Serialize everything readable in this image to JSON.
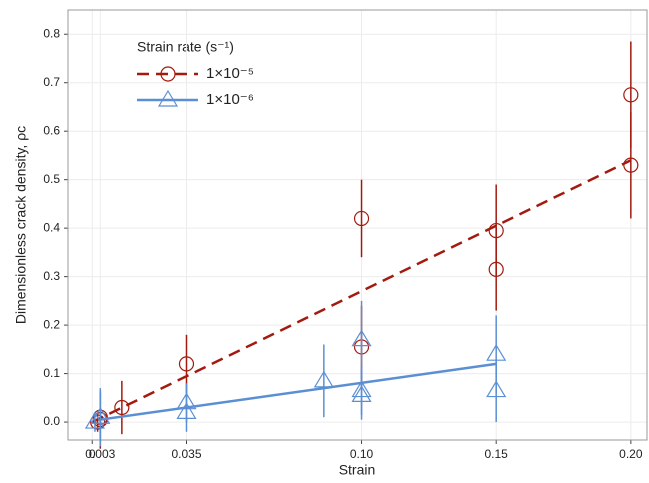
{
  "chart_data": {
    "type": "scatter",
    "xlabel": "Strain",
    "ylabel": "Dimensionless crack density, ρc",
    "legend_title": "Strain rate (s⁻¹)",
    "xlim": [
      -0.009,
      0.206
    ],
    "ylim": [
      -0.037,
      0.85
    ],
    "xticks": [
      0,
      0.003,
      0.035,
      {
        "value": 0.1,
        "label": "0.10"
      },
      0.15,
      {
        "value": 0.2,
        "label": "0.20"
      }
    ],
    "yticks": [
      {
        "value": 0,
        "label": "0.0"
      },
      0.1,
      0.2,
      0.3,
      0.4,
      0.5,
      0.6,
      0.7,
      0.8
    ],
    "grid": true,
    "series": [
      {
        "name": "1×10⁻⁵",
        "color": "#a31a0f",
        "marker": "circle",
        "dash": true,
        "x": [
          0.002,
          0.003,
          0.003,
          0.011,
          0.035,
          0.1,
          0.1,
          0.15,
          0.15,
          0.2,
          0.2
        ],
        "values": [
          0,
          0.005,
          0.01,
          0.03,
          0.12,
          0.42,
          0.155,
          0.395,
          0.315,
          0.675,
          0.53
        ],
        "errors": [
          0.02,
          0.06,
          0.05,
          0.055,
          0.06,
          0.08,
          0.085,
          0.095,
          0.085,
          0.11,
          0.11
        ],
        "fit": {
          "x": [
            0,
            0.2
          ],
          "values": [
            0,
            0.54
          ]
        }
      },
      {
        "name": "1×10⁻⁶",
        "color": "#5b8fd4",
        "marker": "triangle",
        "dash": false,
        "x": [
          0.001,
          0.003,
          0.035,
          0.035,
          0.086,
          0.1,
          0.1,
          0.1,
          0.15,
          0.15
        ],
        "values": [
          0,
          0.01,
          0.04,
          0.02,
          0.085,
          0.17,
          0.065,
          0.055,
          0.14,
          0.065
        ],
        "errors": [
          0.02,
          0.06,
          0.04,
          0.04,
          0.075,
          0.08,
          0.05,
          0.05,
          0.08,
          0.065
        ],
        "fit": {
          "x": [
            0.003,
            0.15
          ],
          "values": [
            0.005,
            0.12
          ]
        }
      }
    ]
  }
}
